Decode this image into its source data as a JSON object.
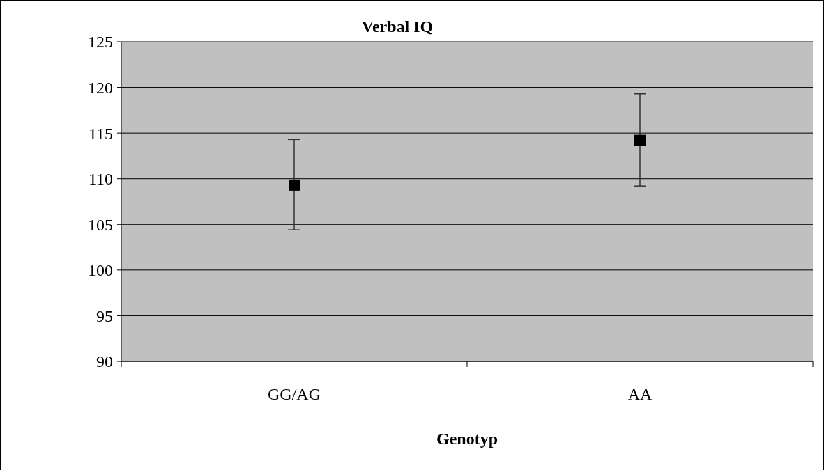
{
  "chart_data": {
    "type": "scatter",
    "title": "Verbal IQ",
    "xlabel": "Genotyp",
    "categories": [
      "GG/AG",
      "AA"
    ],
    "values": [
      109.3,
      114.2
    ],
    "errors": [
      [
        104.4,
        114.3
      ],
      [
        109.2,
        119.3
      ]
    ],
    "color": "#000000",
    "marker": "square",
    "ylim": [
      90,
      125
    ],
    "yticks": [
      90,
      95,
      100,
      105,
      110,
      115,
      120,
      125
    ],
    "grid": "y"
  }
}
